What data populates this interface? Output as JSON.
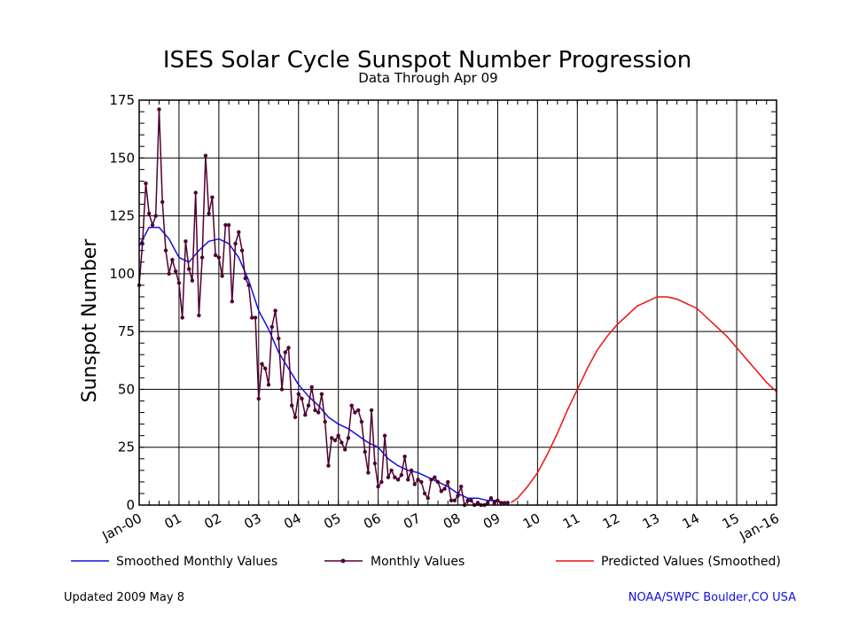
{
  "chart_data": {
    "type": "line",
    "title": "ISES Solar Cycle Sunspot Number Progression",
    "subtitle": "Data Through Apr 09",
    "ylabel": "Sunspot Number",
    "xlabel": "",
    "ylim": [
      0,
      175
    ],
    "xlim": [
      2000.0,
      2016.0
    ],
    "grid": true,
    "y_ticks": [
      0,
      25,
      50,
      75,
      100,
      125,
      150,
      175
    ],
    "x_ticks": [
      {
        "x": 2000.0,
        "label": "Jan-00"
      },
      {
        "x": 2001.0,
        "label": "01"
      },
      {
        "x": 2002.0,
        "label": "02"
      },
      {
        "x": 2003.0,
        "label": "03"
      },
      {
        "x": 2004.0,
        "label": "04"
      },
      {
        "x": 2005.0,
        "label": "05"
      },
      {
        "x": 2006.0,
        "label": "06"
      },
      {
        "x": 2007.0,
        "label": "07"
      },
      {
        "x": 2008.0,
        "label": "08"
      },
      {
        "x": 2009.0,
        "label": "09"
      },
      {
        "x": 2010.0,
        "label": "10"
      },
      {
        "x": 2011.0,
        "label": "11"
      },
      {
        "x": 2012.0,
        "label": "12"
      },
      {
        "x": 2013.0,
        "label": "13"
      },
      {
        "x": 2014.0,
        "label": "14"
      },
      {
        "x": 2015.0,
        "label": "15"
      },
      {
        "x": 2016.0,
        "label": "Jan-16"
      }
    ],
    "legend_position": "bottom",
    "series": [
      {
        "name": "Smoothed Monthly Values",
        "color": "#1010e0",
        "style": "line",
        "x": [
          2000.0,
          2000.25,
          2000.5,
          2000.75,
          2001.0,
          2001.25,
          2001.5,
          2001.75,
          2002.0,
          2002.25,
          2002.5,
          2002.75,
          2003.0,
          2003.25,
          2003.5,
          2003.75,
          2004.0,
          2004.25,
          2004.5,
          2004.75,
          2005.0,
          2005.25,
          2005.5,
          2005.75,
          2006.0,
          2006.25,
          2006.5,
          2006.75,
          2007.0,
          2007.25,
          2007.5,
          2007.75,
          2008.0,
          2008.25,
          2008.5,
          2008.75,
          2009.0
        ],
        "y": [
          112,
          120,
          120,
          115,
          107,
          105,
          110,
          114,
          115,
          113,
          107,
          97,
          84,
          76,
          66,
          59,
          52,
          47,
          43,
          38,
          35,
          33,
          30,
          27,
          25,
          20,
          17,
          15,
          14,
          12,
          10,
          8,
          5,
          3,
          3,
          2,
          2
        ]
      },
      {
        "name": "Monthly Values",
        "color": "#500030",
        "style": "line+markers",
        "x": [
          2000.0,
          2000.083,
          2000.167,
          2000.25,
          2000.333,
          2000.417,
          2000.5,
          2000.583,
          2000.667,
          2000.75,
          2000.833,
          2000.917,
          2001.0,
          2001.083,
          2001.167,
          2001.25,
          2001.333,
          2001.417,
          2001.5,
          2001.583,
          2001.667,
          2001.75,
          2001.833,
          2001.917,
          2002.0,
          2002.083,
          2002.167,
          2002.25,
          2002.333,
          2002.417,
          2002.5,
          2002.583,
          2002.667,
          2002.75,
          2002.833,
          2002.917,
          2003.0,
          2003.083,
          2003.167,
          2003.25,
          2003.333,
          2003.417,
          2003.5,
          2003.583,
          2003.667,
          2003.75,
          2003.833,
          2003.917,
          2004.0,
          2004.083,
          2004.167,
          2004.25,
          2004.333,
          2004.417,
          2004.5,
          2004.583,
          2004.667,
          2004.75,
          2004.833,
          2004.917,
          2005.0,
          2005.083,
          2005.167,
          2005.25,
          2005.333,
          2005.417,
          2005.5,
          2005.583,
          2005.667,
          2005.75,
          2005.833,
          2005.917,
          2006.0,
          2006.083,
          2006.167,
          2006.25,
          2006.333,
          2006.417,
          2006.5,
          2006.583,
          2006.667,
          2006.75,
          2006.833,
          2006.917,
          2007.0,
          2007.083,
          2007.167,
          2007.25,
          2007.333,
          2007.417,
          2007.5,
          2007.583,
          2007.667,
          2007.75,
          2007.833,
          2007.917,
          2008.0,
          2008.083,
          2008.167,
          2008.25,
          2008.333,
          2008.417,
          2008.5,
          2008.583,
          2008.667,
          2008.75,
          2008.833,
          2008.917,
          2009.0,
          2009.083,
          2009.167,
          2009.25
        ],
        "y": [
          95,
          113,
          139,
          126,
          121,
          125,
          171,
          131,
          110,
          100,
          106,
          101,
          96,
          81,
          114,
          102,
          97,
          135,
          82,
          107,
          151,
          126,
          133,
          108,
          107,
          99,
          121,
          121,
          88,
          113,
          118,
          110,
          98,
          95,
          81,
          81,
          46,
          61,
          59,
          52,
          77,
          84,
          72,
          50,
          66,
          68,
          43,
          38,
          48,
          46,
          39,
          43,
          51,
          41,
          40,
          48,
          36,
          17,
          29,
          28,
          30,
          27,
          24,
          29,
          43,
          40,
          41,
          36,
          23,
          14,
          41,
          18,
          8,
          10,
          30,
          12,
          15,
          12,
          11,
          13,
          21,
          11,
          15,
          9,
          11,
          10,
          5,
          3,
          11,
          12,
          10,
          6,
          7,
          10,
          2,
          2,
          4,
          8,
          0,
          2,
          2,
          0,
          1,
          0,
          0,
          1,
          3,
          1,
          2,
          1,
          1,
          1
        ]
      },
      {
        "name": "Predicted Values (Smoothed)",
        "color": "#ee1010",
        "style": "line",
        "x": [
          2009.333,
          2009.5,
          2009.75,
          2010.0,
          2010.25,
          2010.5,
          2010.75,
          2011.0,
          2011.25,
          2011.5,
          2011.75,
          2012.0,
          2012.25,
          2012.5,
          2012.75,
          2013.0,
          2013.25,
          2013.5,
          2013.75,
          2014.0,
          2014.25,
          2014.5,
          2014.75,
          2015.0,
          2015.25,
          2015.5,
          2015.75,
          2016.0
        ],
        "y": [
          1,
          3,
          8,
          14,
          22,
          31,
          41,
          50,
          59,
          67,
          73,
          78,
          82,
          86,
          88,
          90,
          90,
          89,
          87,
          85,
          81,
          77,
          73,
          68,
          63,
          58,
          53,
          49
        ]
      }
    ]
  },
  "footer": {
    "updated": "Updated 2009 May  8",
    "credit": "NOAA/SWPC Boulder,CO USA"
  }
}
